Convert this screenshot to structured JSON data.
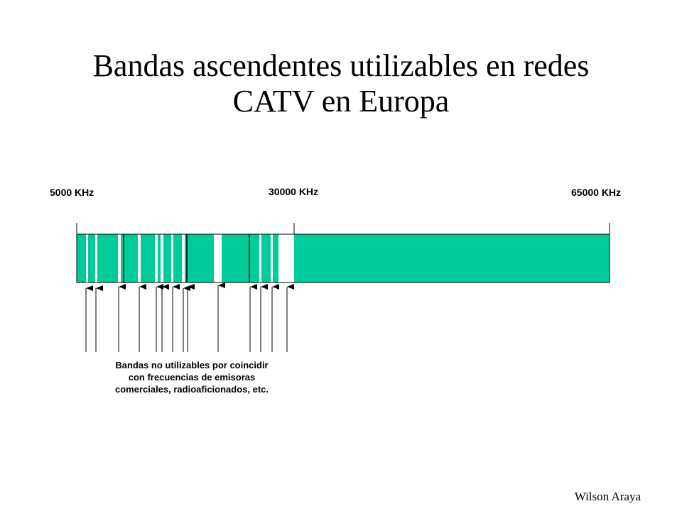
{
  "title_line1": "Bandas ascendentes utilizables en redes",
  "title_line2": "CATV en Europa",
  "scale": {
    "start_label": "5000 KHz",
    "mid_label": "30000 KHz",
    "end_label": "65000 KHz",
    "start_khz": 5000,
    "mid_khz": 30000,
    "end_khz": 65000
  },
  "note_lines": [
    "Bandas no utilizables por coincidir",
    "con frecuencias de emisoras",
    "comerciales, radioaficionados, etc."
  ],
  "author": "Wilson Araya",
  "colors": {
    "usable_band": "#00CC99",
    "excluded_band": "#FFFFFF",
    "ink": "#000000"
  }
}
